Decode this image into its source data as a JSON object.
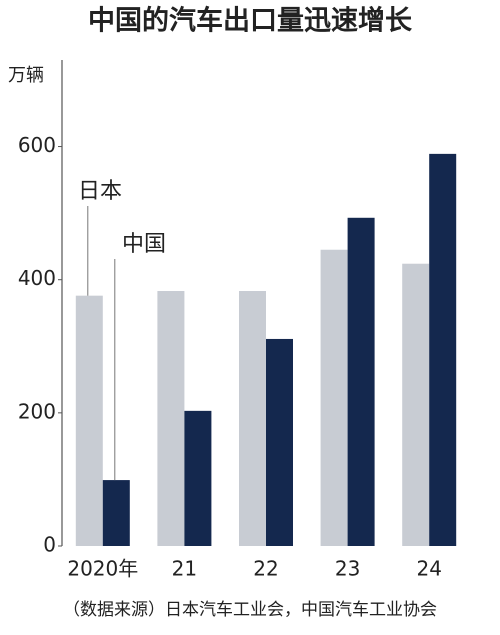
{
  "chart_data": {
    "type": "bar",
    "title": "中国的汽车出口量迅速增长",
    "y_label": "万辆",
    "source": "（数据来源）日本汽车工业会，中国汽车工业协会",
    "categories": [
      "2020年",
      "21",
      "22",
      "23",
      "24"
    ],
    "series": [
      {
        "name": "日本",
        "color": "#c8ccd3",
        "values": [
          376,
          383,
          383,
          445,
          424
        ]
      },
      {
        "name": "中国",
        "color": "#14284e",
        "values": [
          99,
          203,
          311,
          493,
          589
        ]
      }
    ],
    "ylim": [
      0,
      730
    ],
    "yticks": [
      0,
      200,
      400,
      600
    ],
    "grid": false
  }
}
